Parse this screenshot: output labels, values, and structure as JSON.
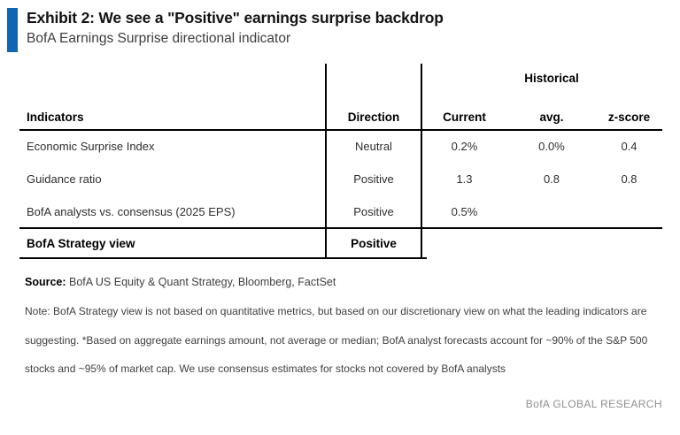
{
  "header": {
    "exhibit_title": "Exhibit 2: We see a \"Positive\" earnings surprise backdrop",
    "subtitle": "BofA Earnings Surprise directional indicator",
    "accent_color": "#1066b2"
  },
  "table": {
    "group_header": "Historical",
    "columns": {
      "indicators": "Indicators",
      "direction": "Direction",
      "current": "Current",
      "avg": "avg.",
      "zscore": "z-score"
    },
    "rows": [
      {
        "indicator": "Economic Surprise Index",
        "direction": "Neutral",
        "current": "0.2%",
        "avg": "0.0%",
        "zscore": "0.4"
      },
      {
        "indicator": "Guidance ratio",
        "direction": "Positive",
        "current": "1.3",
        "avg": "0.8",
        "zscore": "0.8"
      },
      {
        "indicator": "BofA analysts vs. consensus (2025 EPS)",
        "direction": "Positive",
        "current": "0.5%",
        "avg": "",
        "zscore": ""
      }
    ],
    "summary_row": {
      "indicator": "BofA Strategy view",
      "direction": "Positive"
    }
  },
  "footer": {
    "source_label": "Source:",
    "source_text": " BofA US Equity & Quant Strategy, Bloomberg, FactSet",
    "note_lines": [
      "Note: BofA Strategy view is not based on quantitative metrics, but based on our discretionary view on what the leading indicators are",
      "suggesting. *Based on aggregate earnings amount, not average or median; BofA analyst forecasts account for ~90% of the S&P 500",
      "stocks and ~95% of market cap. We use consensus estimates for stocks not covered by BofA analysts"
    ],
    "brand": "BofA GLOBAL RESEARCH"
  }
}
